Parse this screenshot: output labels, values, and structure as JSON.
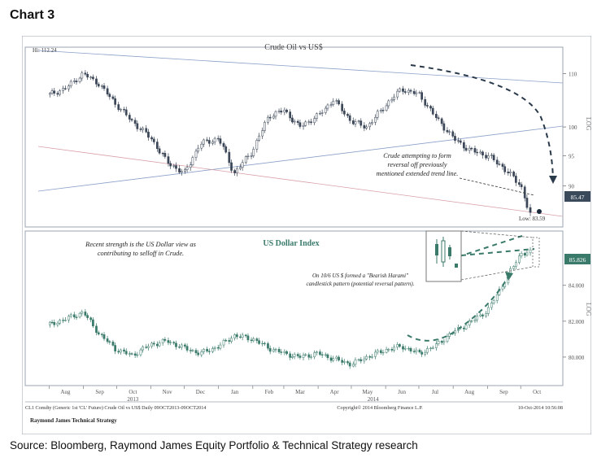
{
  "heading": "Chart 3",
  "source": "Source: Bloomberg, Raymond James Equity Portfolio & Technical Strategy research",
  "chart_data": [
    {
      "type": "line",
      "variant": "candlestick",
      "title": "Crude Oil vs US$",
      "scale": "log",
      "ylim": [
        84,
        114
      ],
      "y_ticks": [
        "110",
        "100",
        "95",
        "90"
      ],
      "y_tick_values": [
        110,
        100,
        95,
        90
      ],
      "axis_label": "LOG",
      "last_value": "85.47",
      "high_label": "Hi: 112.24",
      "low_label": "Low: 83.59",
      "annotation": [
        "Crude attempting to form",
        "reversal off previously",
        "mentioned extended trend line."
      ],
      "x": [
        "2013-08-01",
        "2013-08-15",
        "2013-09-01",
        "2013-09-15",
        "2013-10-01",
        "2013-10-15",
        "2013-11-01",
        "2013-11-15",
        "2013-12-01",
        "2013-12-15",
        "2014-01-01",
        "2014-01-15",
        "2014-02-01",
        "2014-02-15",
        "2014-03-01",
        "2014-03-15",
        "2014-04-01",
        "2014-04-15",
        "2014-05-01",
        "2014-05-15",
        "2014-06-01",
        "2014-06-15",
        "2014-07-01",
        "2014-07-15",
        "2014-08-01",
        "2014-08-15",
        "2014-09-01",
        "2014-09-15",
        "2014-10-01",
        "2014-10-09"
      ],
      "values": [
        106,
        107,
        110,
        108,
        104,
        101,
        98,
        94,
        92,
        97,
        98,
        92,
        96,
        102,
        103,
        100,
        102,
        105,
        101,
        100,
        104,
        107,
        106,
        102,
        98,
        96,
        95,
        93,
        90,
        85.47
      ],
      "series": [
        {
          "name": "CL1 Comdty",
          "values": [
            106,
            107,
            110,
            108,
            104,
            101,
            98,
            94,
            92,
            97,
            98,
            92,
            96,
            102,
            103,
            100,
            102,
            105,
            101,
            100,
            104,
            107,
            106,
            102,
            98,
            96,
            95,
            93,
            90,
            85.47
          ]
        }
      ]
    },
    {
      "type": "line",
      "variant": "candlestick",
      "title": "US Dollar Index",
      "ylim": [
        78.5,
        86.8
      ],
      "y_ticks": [
        "84.000",
        "82.000",
        "80.000"
      ],
      "y_tick_values": [
        84,
        82,
        80
      ],
      "axis_label": "LOG",
      "last_value": "85.826",
      "annotation_left": [
        "Recent strength is the US Dollar view as",
        "contributing to selloff in Crude."
      ],
      "annotation_right": [
        "On 10/6 US $ formed a \"Bearish Harami\"",
        "candlestick pattern (potential reversal pattern)."
      ],
      "x": [
        "2013-08-01",
        "2013-08-15",
        "2013-09-01",
        "2013-09-15",
        "2013-10-01",
        "2013-10-15",
        "2013-11-01",
        "2013-11-15",
        "2013-12-01",
        "2013-12-15",
        "2014-01-01",
        "2014-01-15",
        "2014-02-01",
        "2014-02-15",
        "2014-03-01",
        "2014-03-15",
        "2014-04-01",
        "2014-04-15",
        "2014-05-01",
        "2014-05-15",
        "2014-06-01",
        "2014-06-15",
        "2014-07-01",
        "2014-07-15",
        "2014-08-01",
        "2014-08-15",
        "2014-09-01",
        "2014-09-15",
        "2014-10-01",
        "2014-10-09"
      ],
      "values": [
        81.8,
        82.1,
        82.5,
        81.3,
        80.4,
        80.1,
        80.7,
        80.9,
        80.5,
        80.2,
        80.6,
        81.2,
        81.0,
        80.5,
        80.2,
        80.0,
        80.2,
        79.9,
        79.6,
        80.0,
        80.4,
        80.6,
        80.2,
        80.6,
        81.4,
        81.9,
        82.6,
        84.1,
        85.8,
        85.826
      ],
      "series": [
        {
          "name": "DXY",
          "values": [
            81.8,
            82.1,
            82.5,
            81.3,
            80.4,
            80.1,
            80.7,
            80.9,
            80.5,
            80.2,
            80.6,
            81.2,
            81.0,
            80.5,
            80.2,
            80.0,
            80.2,
            79.9,
            79.6,
            80.0,
            80.4,
            80.6,
            80.2,
            80.6,
            81.4,
            81.9,
            82.6,
            84.1,
            85.8,
            85.826
          ]
        }
      ]
    }
  ],
  "x_axis": {
    "months": [
      "Aug",
      "Sep",
      "Oct",
      "Nov",
      "Dec",
      "Jan",
      "Feb",
      "Mar",
      "Apr",
      "May",
      "Jun",
      "Jul",
      "Aug",
      "Sep",
      "Oct"
    ],
    "years": [
      "2013",
      "2014"
    ]
  },
  "footer": {
    "left": "CL1 Comdty (Generic 1st 'CL' Future) Crude Oil vs US$  Daily 09OCT2013-09OCT2014",
    "center": "Copyright© 2014 Bloomberg Finance L.P.",
    "right": "10-Oct-2014 10:56:08"
  },
  "credit": "Raymond James Technical Strategy",
  "colors": {
    "crude": "#3b4657",
    "dollar": "#3a7a6a",
    "annotation_arrow": "#2a3a4a",
    "trendline_blue": "#8aa0c8",
    "trendline_red": "#d8a0a8",
    "last_value_box": "#3a4a5a"
  }
}
